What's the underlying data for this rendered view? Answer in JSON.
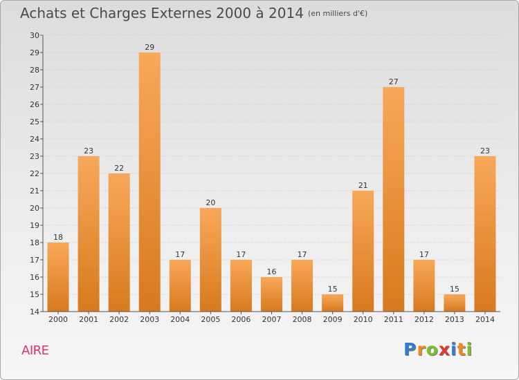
{
  "header": {
    "title": "Achats et Charges Externes 2000 à 2014",
    "subtitle": "(en milliers d'€)"
  },
  "footer": {
    "place": "AIRE",
    "logo_letters": [
      "P",
      "r",
      "o",
      "x",
      "i",
      "t",
      "i"
    ],
    "logo_colors": [
      "#2e7fd0",
      "#f08a1e",
      "#7bbf2a",
      "#e13a2a",
      "#2e7fd0",
      "#f08a1e",
      "#7bbf2a"
    ]
  },
  "colors": {
    "bar_light": "#f8a85a",
    "bar_dark": "#d77a1e",
    "axis": "#555555",
    "grid": "#c9c9c9",
    "place": "#d8336c"
  },
  "chart_data": {
    "type": "bar",
    "title": "Achats et Charges Externes 2000 à 2014",
    "subtitle": "(en milliers d'€)",
    "categories": [
      "2000",
      "2001",
      "2002",
      "2003",
      "2004",
      "2005",
      "2006",
      "2007",
      "2008",
      "2009",
      "2010",
      "2011",
      "2012",
      "2013",
      "2014"
    ],
    "values": [
      18,
      23,
      22,
      29,
      17,
      20,
      17,
      16,
      17,
      15,
      21,
      27,
      17,
      15,
      23
    ],
    "ylim": [
      14,
      30
    ],
    "yticks": [
      14,
      15,
      16,
      17,
      18,
      19,
      20,
      21,
      22,
      23,
      24,
      25,
      26,
      27,
      28,
      29,
      30
    ],
    "grid": true,
    "data_labels": true
  }
}
